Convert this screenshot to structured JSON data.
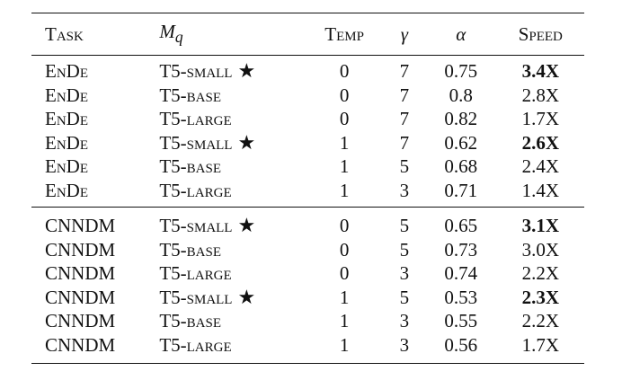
{
  "table": {
    "headers": {
      "task": "Task",
      "mq_base": "M",
      "mq_sub": "q",
      "temp": "Temp",
      "gamma": "γ",
      "alpha": "α",
      "speed": "Speed"
    },
    "groups": [
      {
        "rows": [
          {
            "task": "EnDe",
            "model": "T5-small",
            "star": "★",
            "temp": "0",
            "gamma": "7",
            "alpha": "0.75",
            "speed": "3.4X",
            "best": true
          },
          {
            "task": "EnDe",
            "model": "T5-base",
            "star": "",
            "temp": "0",
            "gamma": "7",
            "alpha": "0.8",
            "speed": "2.8X",
            "best": false
          },
          {
            "task": "EnDe",
            "model": "T5-large",
            "star": "",
            "temp": "0",
            "gamma": "7",
            "alpha": "0.82",
            "speed": "1.7X",
            "best": false
          },
          {
            "task": "EnDe",
            "model": "T5-small",
            "star": "★",
            "temp": "1",
            "gamma": "7",
            "alpha": "0.62",
            "speed": "2.6X",
            "best": true
          },
          {
            "task": "EnDe",
            "model": "T5-base",
            "star": "",
            "temp": "1",
            "gamma": "5",
            "alpha": "0.68",
            "speed": "2.4X",
            "best": false
          },
          {
            "task": "EnDe",
            "model": "T5-large",
            "star": "",
            "temp": "1",
            "gamma": "3",
            "alpha": "0.71",
            "speed": "1.4X",
            "best": false
          }
        ]
      },
      {
        "rows": [
          {
            "task": "CNNDM",
            "model": "T5-small",
            "star": "★",
            "temp": "0",
            "gamma": "5",
            "alpha": "0.65",
            "speed": "3.1X",
            "best": true
          },
          {
            "task": "CNNDM",
            "model": "T5-base",
            "star": "",
            "temp": "0",
            "gamma": "5",
            "alpha": "0.73",
            "speed": "3.0X",
            "best": false
          },
          {
            "task": "CNNDM",
            "model": "T5-large",
            "star": "",
            "temp": "0",
            "gamma": "3",
            "alpha": "0.74",
            "speed": "2.2X",
            "best": false
          },
          {
            "task": "CNNDM",
            "model": "T5-small",
            "star": "★",
            "temp": "1",
            "gamma": "5",
            "alpha": "0.53",
            "speed": "2.3X",
            "best": true
          },
          {
            "task": "CNNDM",
            "model": "T5-base",
            "star": "",
            "temp": "1",
            "gamma": "3",
            "alpha": "0.55",
            "speed": "2.2X",
            "best": false
          },
          {
            "task": "CNNDM",
            "model": "T5-large",
            "star": "",
            "temp": "1",
            "gamma": "3",
            "alpha": "0.56",
            "speed": "1.7X",
            "best": false
          }
        ]
      }
    ]
  }
}
